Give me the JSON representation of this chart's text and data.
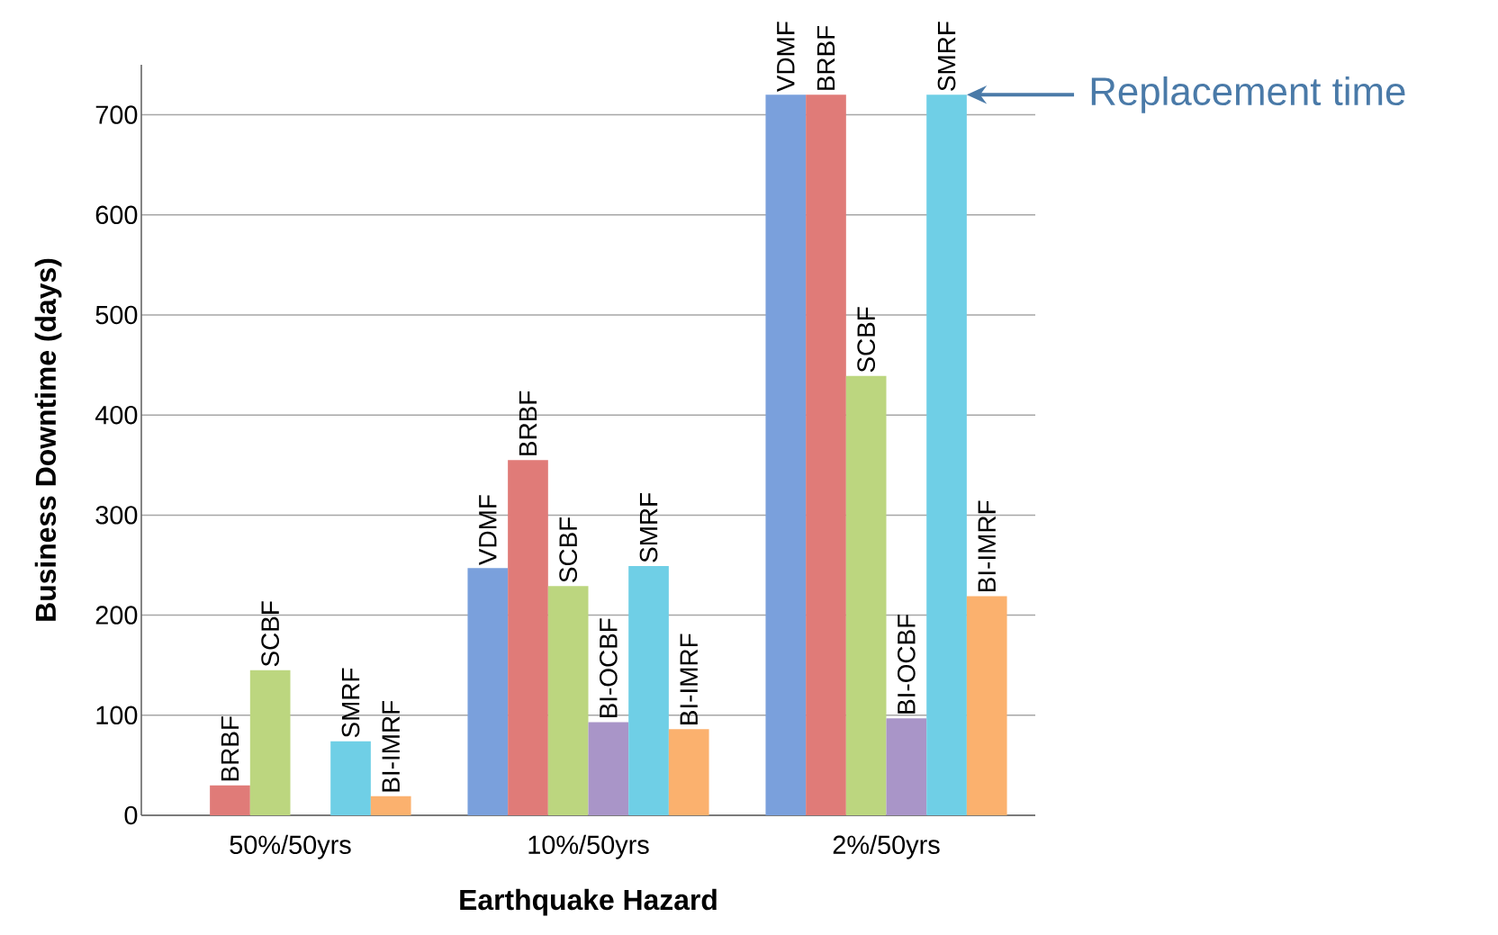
{
  "chart_data": {
    "type": "bar",
    "xlabel": "Earthquake Hazard",
    "ylabel": "Business Downtime (days)",
    "categories": [
      "50%/50yrs",
      "10%/50yrs",
      "2%/50yrs"
    ],
    "series": [
      {
        "name": "VDMF",
        "color": "#7aa0dc",
        "values": [
          null,
          247,
          720
        ]
      },
      {
        "name": "BRBF",
        "color": "#e07b78",
        "values": [
          30,
          355,
          720
        ]
      },
      {
        "name": "SCBF",
        "color": "#bcd67f",
        "values": [
          145,
          229,
          439
        ]
      },
      {
        "name": "BI-OCBF",
        "color": "#a995c8",
        "values": [
          null,
          93,
          97
        ]
      },
      {
        "name": "SMRF",
        "color": "#6fcfe6",
        "values": [
          74,
          249,
          720
        ]
      },
      {
        "name": "BI-IMRF",
        "color": "#fbb16e",
        "values": [
          19,
          86,
          219
        ]
      }
    ],
    "ylim": [
      0,
      750
    ],
    "yticks": [
      0,
      100,
      200,
      300,
      400,
      500,
      600,
      700
    ],
    "grid": "y",
    "annotations": [
      "Replacement time"
    ]
  }
}
